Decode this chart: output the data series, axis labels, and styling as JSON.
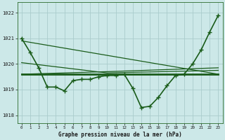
{
  "title": "Graphe pression niveau de la mer (hPa)",
  "background_color": "#cce8e8",
  "grid_color": "#aacccc",
  "line_color": "#1a5c1a",
  "xlim": [
    -0.5,
    23.5
  ],
  "ylim": [
    1017.7,
    1022.4
  ],
  "yticks": [
    1018,
    1019,
    1020,
    1021,
    1022
  ],
  "xticks": [
    0,
    1,
    2,
    3,
    4,
    5,
    6,
    7,
    8,
    9,
    10,
    11,
    12,
    13,
    14,
    15,
    16,
    17,
    18,
    19,
    20,
    21,
    22,
    23
  ],
  "series": [
    {
      "x": [
        0,
        1,
        2,
        3,
        4,
        5,
        6,
        7,
        8,
        9,
        10,
        11,
        12,
        13,
        14,
        15,
        16,
        17,
        18,
        19,
        20,
        21,
        22,
        23
      ],
      "y": [
        1021.0,
        1020.45,
        1019.85,
        1019.1,
        1019.1,
        1018.95,
        1019.35,
        1019.4,
        1019.4,
        1019.5,
        1019.55,
        1019.55,
        1019.6,
        1019.05,
        1018.3,
        1018.35,
        1018.7,
        1019.15,
        1019.55,
        1019.6,
        1020.0,
        1020.55,
        1021.25,
        1021.9
      ],
      "marker": "+",
      "linewidth": 1.2,
      "markersize": 4
    },
    {
      "x": [
        0,
        23
      ],
      "y": [
        1020.9,
        1019.6
      ],
      "marker": null,
      "linewidth": 0.9
    },
    {
      "x": [
        0,
        23
      ],
      "y": [
        1019.6,
        1019.6
      ],
      "marker": null,
      "linewidth": 2.0
    },
    {
      "x": [
        0,
        10,
        23
      ],
      "y": [
        1019.6,
        1019.7,
        1019.85
      ],
      "marker": null,
      "linewidth": 0.9
    },
    {
      "x": [
        0,
        10,
        23
      ],
      "y": [
        1020.05,
        1019.65,
        1019.75
      ],
      "marker": null,
      "linewidth": 0.9
    }
  ]
}
